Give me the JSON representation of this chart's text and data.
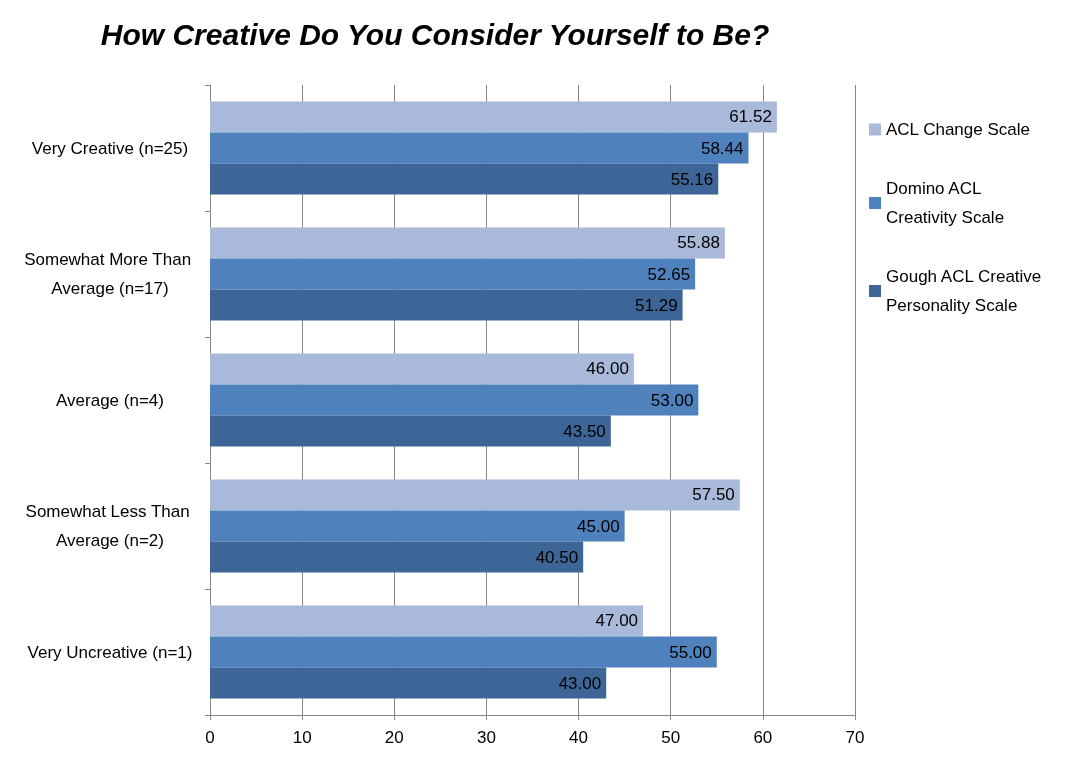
{
  "chart_data": {
    "type": "bar",
    "orientation": "horizontal",
    "title": "How Creative Do You Consider Yourself to Be?",
    "categories": [
      "Very Creative (n=25)",
      "Somewhat More Than Average (n=17)",
      "Average (n=4)",
      "Somewhat Less Than Average (n=2)",
      "Very Uncreative (n=1)"
    ],
    "series": [
      {
        "name": "ACL Change Scale",
        "color": "#a9b9d9",
        "values": [
          61.52,
          55.88,
          46,
          57.5,
          47
        ],
        "value_labels": [
          "61.52",
          "55.88",
          "46.00",
          "57.50",
          "47.00"
        ]
      },
      {
        "name": "Domino ACL Creativity Scale",
        "color": "#4f81bd",
        "values": [
          58.44,
          52.65,
          53,
          45,
          55
        ],
        "value_labels": [
          "58.44",
          "52.65",
          "53.00",
          "45.00",
          "55.00"
        ]
      },
      {
        "name": "Gough ACL Creative Personality Scale",
        "color": "#3e6597",
        "values": [
          55.16,
          51.29,
          43.5,
          40.5,
          43
        ],
        "value_labels": [
          "55.16",
          "51.29",
          "43.50",
          "40.50",
          "43.00"
        ]
      }
    ],
    "xlim": [
      0,
      70
    ],
    "xticks": [
      0,
      10,
      20,
      30,
      40,
      50,
      60,
      70
    ],
    "grid": "x",
    "legend": "right"
  }
}
